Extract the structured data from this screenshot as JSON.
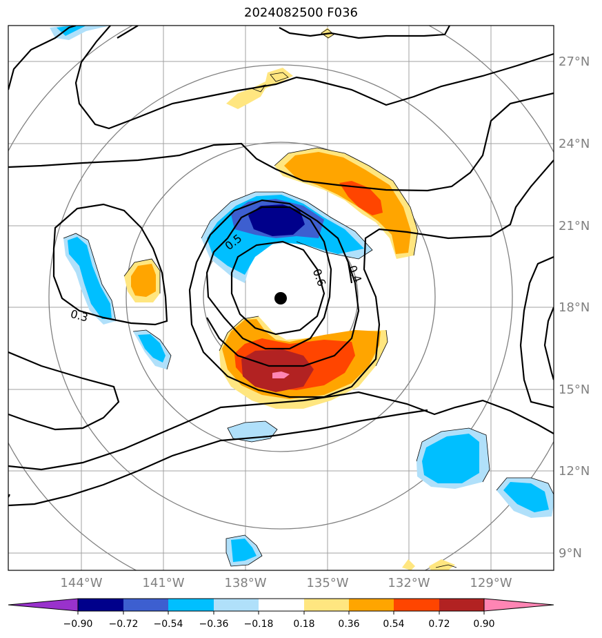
{
  "title": "2024082500 F036",
  "map": {
    "lat_labels": [
      "27°N",
      "24°N",
      "21°N",
      "18°N",
      "15°N",
      "12°N",
      "9°N"
    ],
    "lon_labels": [
      "144°W",
      "141°W",
      "138°W",
      "135°W",
      "132°W",
      "129°W"
    ],
    "grid_color": "#a0a0a0",
    "range_ring_color": "#808080",
    "storm_center_marker": "black-dot",
    "contour_labels": [
      "0.5",
      "0.6",
      "0.4",
      "0.3"
    ]
  },
  "colorbar": {
    "ticks": [
      "−0.90",
      "−0.72",
      "−0.54",
      "−0.36",
      "−0.18",
      "0.18",
      "0.36",
      "0.54",
      "0.72",
      "0.90"
    ],
    "colors": [
      "#9932cc",
      "#00008b",
      "#3d5fd0",
      "#00bfff",
      "#b0e0fa",
      "#ffffff",
      "#ffe680",
      "#ffa500",
      "#ff4500",
      "#b22222",
      "#ff85b4"
    ]
  }
}
